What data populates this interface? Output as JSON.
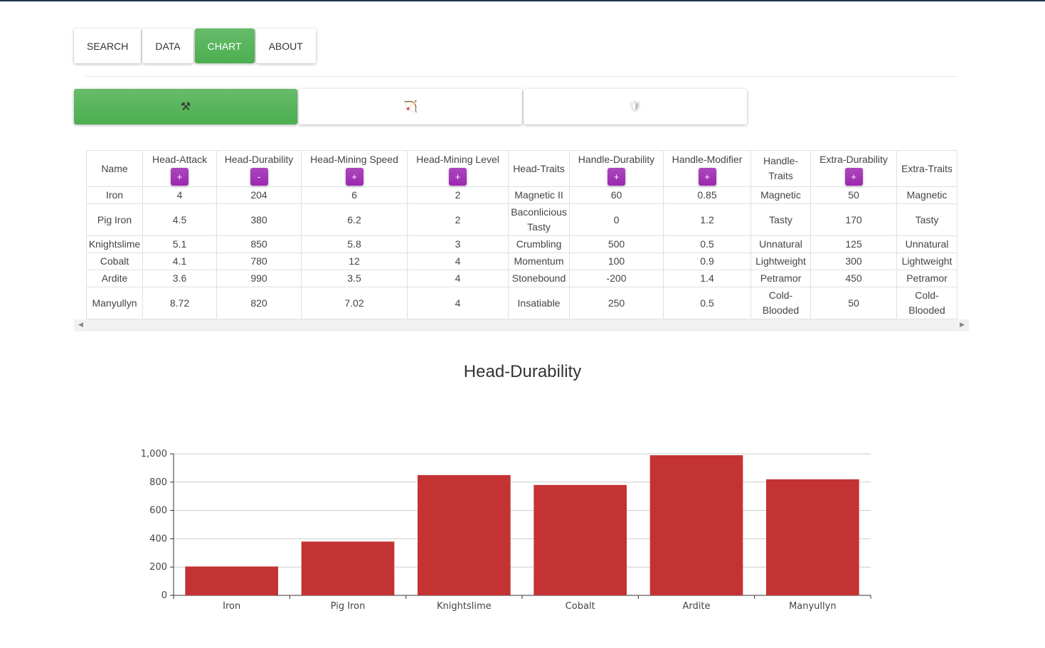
{
  "nav": {
    "tabs": [
      {
        "label": "SEARCH"
      },
      {
        "label": "DATA"
      },
      {
        "label": "CHART",
        "active": true
      },
      {
        "label": "ABOUT"
      }
    ]
  },
  "categories": [
    {
      "icon": "⚒",
      "name": "crossed-tools-icon",
      "active": true
    },
    {
      "icon": "🏹",
      "name": "bow-icon"
    },
    {
      "icon": "🛡",
      "name": "shield-icon"
    }
  ],
  "table": {
    "headers": [
      {
        "label": "Name"
      },
      {
        "label": "Head-Attack",
        "btn": "+"
      },
      {
        "label": "Head-Durability",
        "btn": "-"
      },
      {
        "label": "Head-Mining Speed",
        "btn": "+"
      },
      {
        "label": "Head-Mining Level",
        "btn": "+"
      },
      {
        "label": "Head-Traits"
      },
      {
        "label": "Handle-Durability",
        "btn": "+"
      },
      {
        "label": "Handle-Modifier",
        "btn": "+"
      },
      {
        "label": "Handle-Traits"
      },
      {
        "label": "Extra-Durability",
        "btn": "+"
      },
      {
        "label": "Extra-Traits"
      }
    ],
    "rows": [
      [
        "Iron",
        "4",
        "204",
        "6",
        "2",
        "Magnetic II",
        "60",
        "0.85",
        "Magnetic",
        "50",
        "Magnetic"
      ],
      [
        "Pig Iron",
        "4.5",
        "380",
        "6.2",
        "2",
        "Baconlicious Tasty",
        "0",
        "1.2",
        "Tasty",
        "170",
        "Tasty"
      ],
      [
        "Knightslime",
        "5.1",
        "850",
        "5.8",
        "3",
        "Crumbling",
        "500",
        "0.5",
        "Unnatural",
        "125",
        "Unnatural"
      ],
      [
        "Cobalt",
        "4.1",
        "780",
        "12",
        "4",
        "Momentum",
        "100",
        "0.9",
        "Lightweight",
        "300",
        "Lightweight"
      ],
      [
        "Ardite",
        "3.6",
        "990",
        "3.5",
        "4",
        "Stonebound",
        "-200",
        "1.4",
        "Petramor",
        "450",
        "Petramor"
      ],
      [
        "Manyullyn",
        "8.72",
        "820",
        "7.02",
        "4",
        "Insatiable",
        "250",
        "0.5",
        "Cold-Blooded",
        "50",
        "Cold-Blooded"
      ]
    ]
  },
  "chart_data": {
    "type": "bar",
    "title": "Head-Durability",
    "categories": [
      "Iron",
      "Pig Iron",
      "Knightslime",
      "Cobalt",
      "Ardite",
      "Manyullyn"
    ],
    "values": [
      204,
      380,
      850,
      780,
      990,
      820
    ],
    "ylim": [
      0,
      1000
    ],
    "yticks": [
      "0",
      "200",
      "400",
      "600",
      "800",
      "1,000"
    ],
    "ytick_values": [
      0,
      200,
      400,
      600,
      800,
      1000
    ],
    "bar_color": "#c33333",
    "grid": true,
    "xlabel": "",
    "ylabel": ""
  }
}
